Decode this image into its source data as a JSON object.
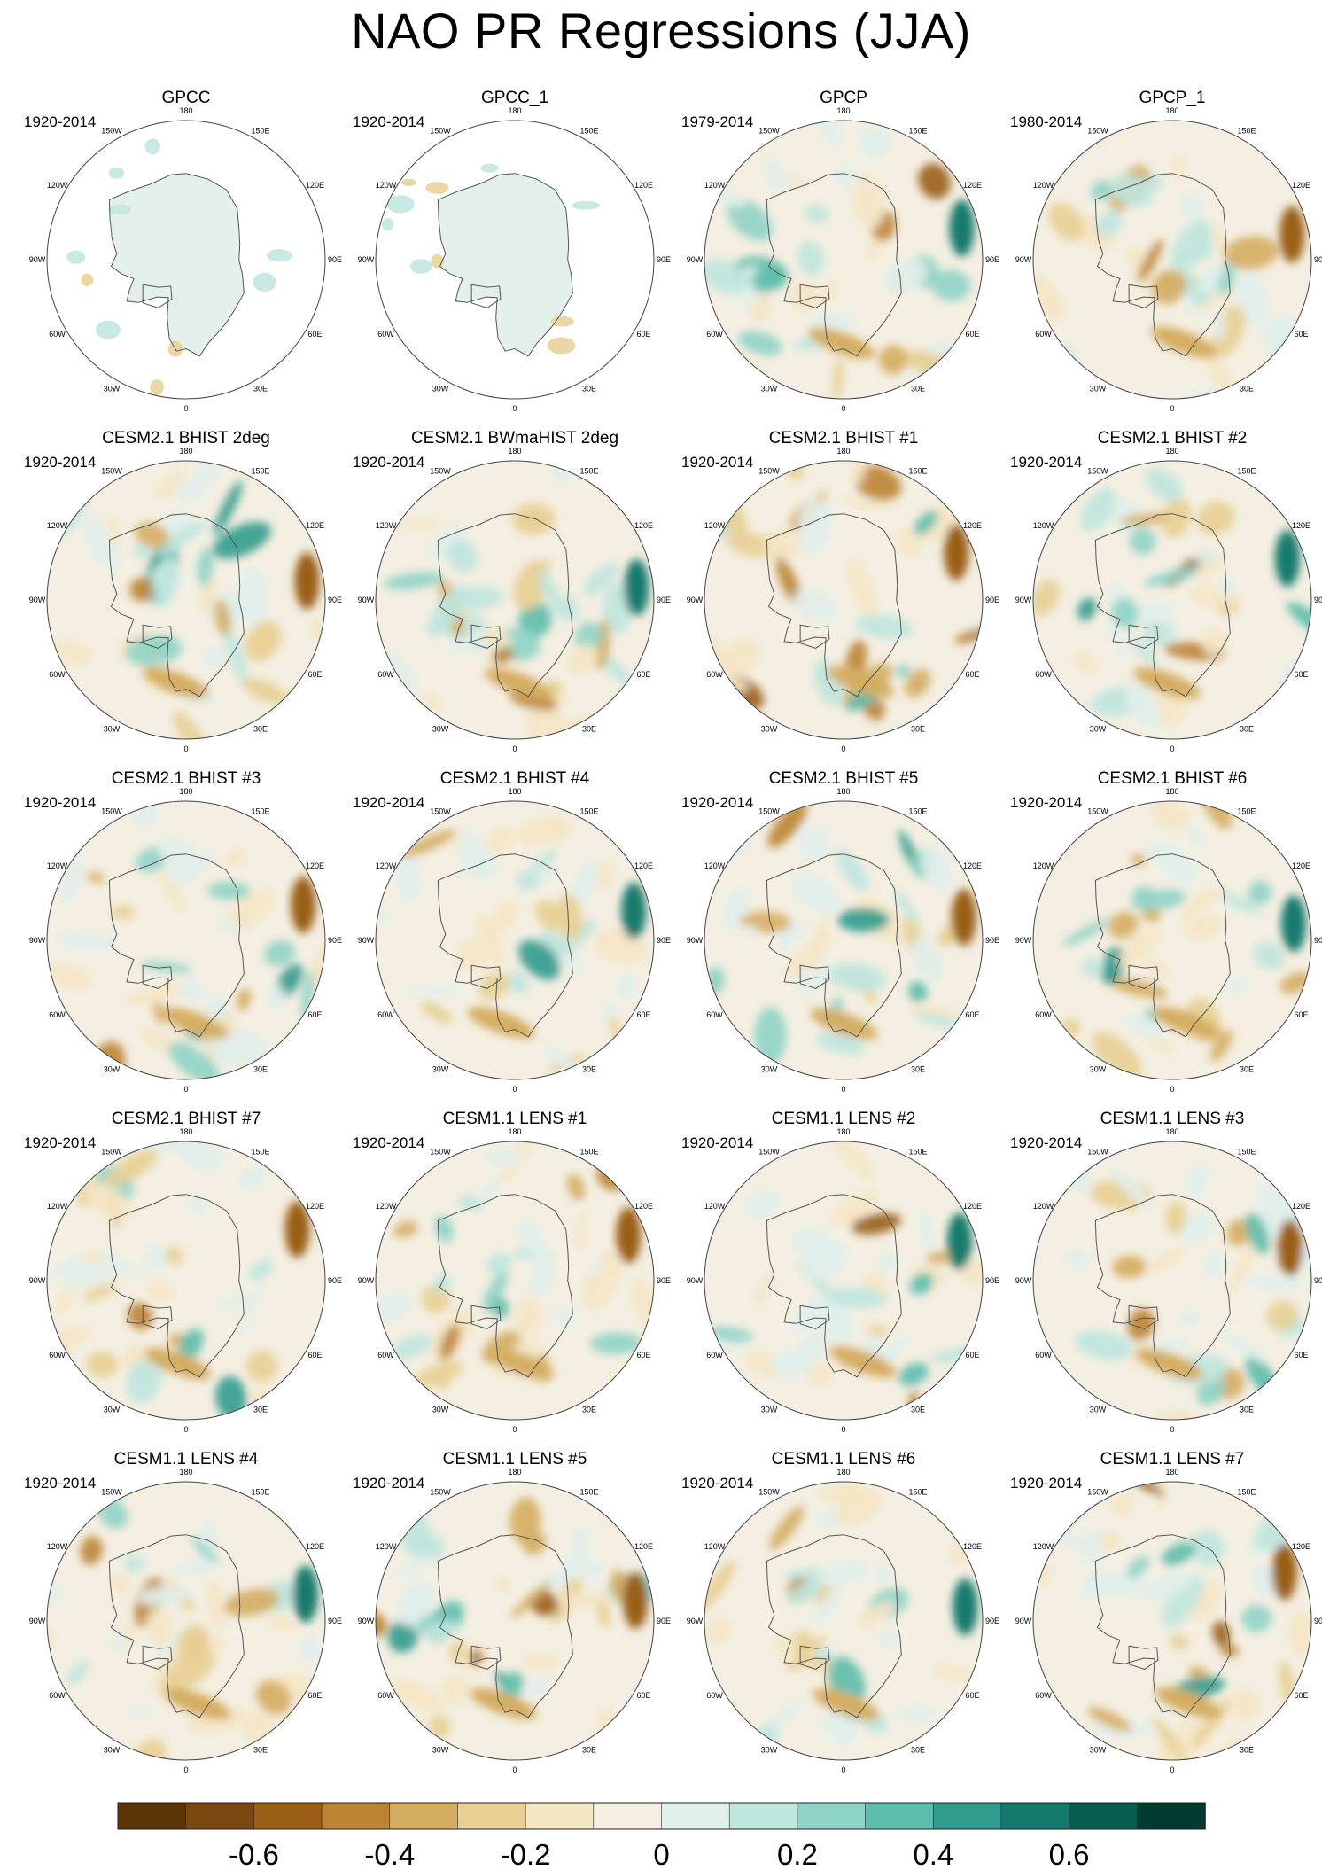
{
  "title": "NAO PR Regressions (JJA)",
  "colormap": {
    "colors": [
      "#5b3408",
      "#7a4810",
      "#9a5e16",
      "#bc8434",
      "#d5ad62",
      "#e8cf94",
      "#f5e6c4",
      "#f4efe2",
      "#e1f0ec",
      "#bfe6df",
      "#8fd3c6",
      "#5dbcac",
      "#319b8e",
      "#137a6d",
      "#055e50",
      "#023c30"
    ],
    "tick_labels": [
      "-0.6",
      "-0.4",
      "-0.2",
      "0",
      "0.2",
      "0.4",
      "0.6"
    ]
  },
  "longitude_labels": [
    "180",
    "150E",
    "120E",
    "90E",
    "60E",
    "30E",
    "0",
    "30W",
    "60W",
    "90W",
    "120W",
    "150W"
  ],
  "panels": [
    {
      "title": "GPCC",
      "period": "1920-2014",
      "data_mask": "land-only"
    },
    {
      "title": "GPCC_1",
      "period": "1920-2014",
      "data_mask": "land-only"
    },
    {
      "title": "GPCP",
      "period": "1979-2014",
      "data_mask": "full"
    },
    {
      "title": "GPCP_1",
      "period": "1980-2014",
      "data_mask": "full"
    },
    {
      "title": "CESM2.1 BHIST 2deg",
      "period": "1920-2014",
      "data_mask": "full"
    },
    {
      "title": "CESM2.1 BWmaHIST 2deg",
      "period": "1920-2014",
      "data_mask": "full"
    },
    {
      "title": "CESM2.1 BHIST #1",
      "period": "1920-2014",
      "data_mask": "full"
    },
    {
      "title": "CESM2.1 BHIST #2",
      "period": "1920-2014",
      "data_mask": "full"
    },
    {
      "title": "CESM2.1 BHIST #3",
      "period": "1920-2014",
      "data_mask": "full"
    },
    {
      "title": "CESM2.1 BHIST #4",
      "period": "1920-2014",
      "data_mask": "full"
    },
    {
      "title": "CESM2.1 BHIST #5",
      "period": "1920-2014",
      "data_mask": "full"
    },
    {
      "title": "CESM2.1 BHIST #6",
      "period": "1920-2014",
      "data_mask": "full"
    },
    {
      "title": "CESM2.1 BHIST #7",
      "period": "1920-2014",
      "data_mask": "full"
    },
    {
      "title": "CESM1.1 LENS #1",
      "period": "1920-2014",
      "data_mask": "full"
    },
    {
      "title": "CESM1.1 LENS #2",
      "period": "1920-2014",
      "data_mask": "full"
    },
    {
      "title": "CESM1.1 LENS #3",
      "period": "1920-2014",
      "data_mask": "full"
    },
    {
      "title": "CESM1.1 LENS #4",
      "period": "1920-2014",
      "data_mask": "full"
    },
    {
      "title": "CESM1.1 LENS #5",
      "period": "1920-2014",
      "data_mask": "full"
    },
    {
      "title": "CESM1.1 LENS #6",
      "period": "1920-2014",
      "data_mask": "full"
    },
    {
      "title": "CESM1.1 LENS #7",
      "period": "1920-2014",
      "data_mask": "full"
    }
  ]
}
